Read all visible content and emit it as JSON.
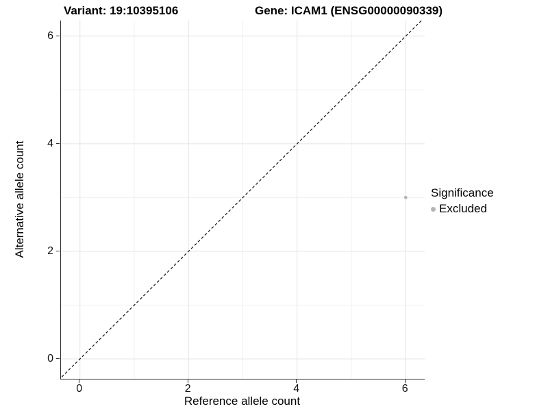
{
  "titles": {
    "variant": "Variant: 19:10395106",
    "gene": "Gene: ICAM1 (ENSG00000090339)"
  },
  "axes": {
    "x": {
      "label": "Reference allele count",
      "tick_labels": [
        "0",
        "2",
        "4",
        "6"
      ],
      "tick_values": [
        0,
        2,
        4,
        6
      ],
      "minor_tick_values": [
        1,
        3,
        5
      ],
      "domain": [
        -0.35,
        6.35
      ]
    },
    "y": {
      "label": "Alternative allele count",
      "tick_labels": [
        "0",
        "2",
        "4",
        "6"
      ],
      "tick_values": [
        0,
        2,
        4,
        6
      ],
      "minor_tick_values": [
        1,
        3,
        5
      ],
      "domain": [
        -0.37,
        6.29
      ]
    }
  },
  "legend": {
    "title": "Significance",
    "items": [
      {
        "label": "Excluded",
        "color": "#b4b4b4"
      }
    ]
  },
  "colors": {
    "axis_line": "#2f2f2f",
    "text": "#000000",
    "grid_major": "#e4e4e4",
    "grid_minor": "#f0f0f0",
    "dashed_line": "#111111",
    "point": "#b4b4b4"
  },
  "chart_data": {
    "type": "scatter",
    "title": "Variant: 19:10395106 | Gene: ICAM1 (ENSG00000090339)",
    "xlabel": "Reference allele count",
    "ylabel": "Alternative allele count",
    "xlim": [
      0,
      6
    ],
    "ylim": [
      0,
      6
    ],
    "x_ticks": [
      0,
      2,
      4,
      6
    ],
    "y_ticks": [
      0,
      2,
      4,
      6
    ],
    "grid": "on",
    "legend_position": "right",
    "reference_line": {
      "type": "identity y=x",
      "style": "dashed",
      "color": "#111111"
    },
    "series": [
      {
        "name": "Excluded",
        "color": "#b4b4b4",
        "marker": "circle",
        "points": [
          {
            "x": 6,
            "y": 3
          }
        ]
      }
    ]
  }
}
